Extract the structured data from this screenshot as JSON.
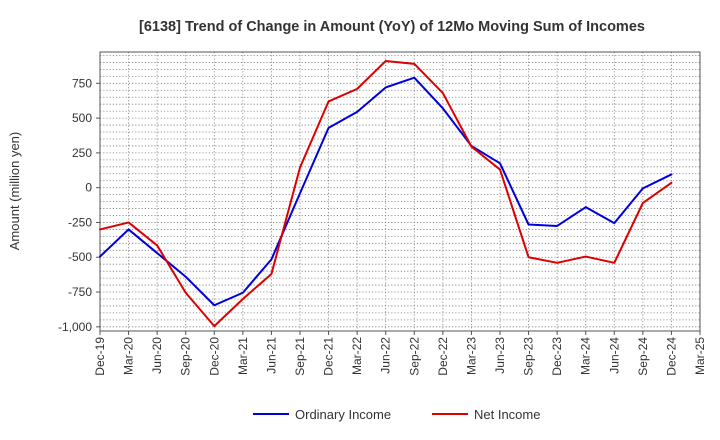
{
  "chart_data": {
    "type": "line",
    "title": "[6138]  Trend of Change in Amount (YoY) of 12Mo Moving Sum of Incomes",
    "ylabel": "Amount (million yen)",
    "xlabel": "",
    "ylim": [
      -1030,
      975
    ],
    "yticks": [
      750,
      500,
      250,
      0,
      -250,
      -500,
      -750,
      -1000
    ],
    "ytick_labels": [
      "750",
      "500",
      "250",
      "0",
      "-250",
      "-500",
      "-750",
      "-1,000"
    ],
    "x": [
      "Dec-19",
      "Mar-20",
      "Jun-20",
      "Sep-20",
      "Dec-20",
      "Mar-21",
      "Jun-21",
      "Sep-21",
      "Dec-21",
      "Mar-22",
      "Jun-22",
      "Sep-22",
      "Dec-22",
      "Mar-23",
      "Jun-23",
      "Sep-23",
      "Dec-23",
      "Mar-24",
      "Jun-24",
      "Sep-24",
      "Dec-24",
      "Mar-25"
    ],
    "grid": true,
    "legend_position": "bottom-center",
    "series": [
      {
        "name": "Ordinary Income",
        "color": "#0000dd",
        "values": [
          -495,
          -300,
          -470,
          -640,
          -845,
          -755,
          -515,
          -40,
          430,
          545,
          720,
          790,
          570,
          300,
          175,
          -265,
          -275,
          -140,
          -255,
          -5,
          95,
          null
        ]
      },
      {
        "name": "Net Income",
        "color": "#dd0000",
        "values": [
          -300,
          -250,
          -415,
          -755,
          -995,
          -800,
          -620,
          145,
          620,
          710,
          910,
          890,
          680,
          295,
          130,
          -500,
          -540,
          -495,
          -540,
          -110,
          35,
          null
        ]
      }
    ]
  }
}
